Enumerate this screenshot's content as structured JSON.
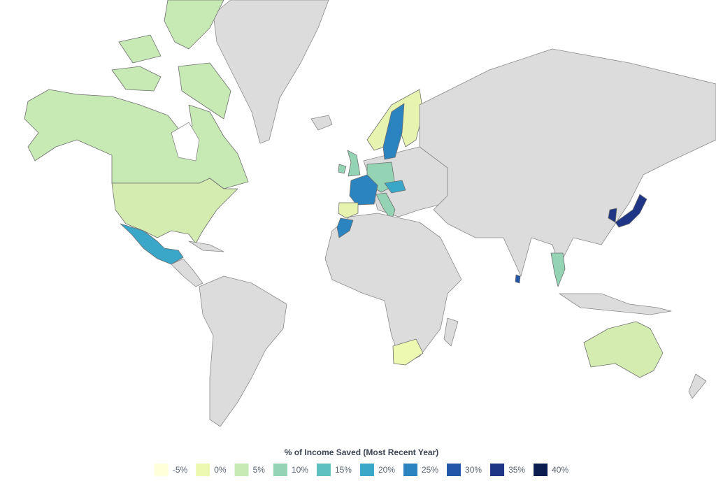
{
  "legend": {
    "title": "% of Income Saved (Most Recent Year)",
    "items": [
      {
        "value": -5,
        "label": "-5%",
        "color": "#ffffd9"
      },
      {
        "value": 0,
        "label": "0%",
        "color": "#edf8b1"
      },
      {
        "value": 5,
        "label": "5%",
        "color": "#c7e9b4"
      },
      {
        "value": 10,
        "label": "10%",
        "color": "#94d4b4"
      },
      {
        "value": 15,
        "label": "15%",
        "color": "#5ec0c0"
      },
      {
        "value": 20,
        "label": "20%",
        "color": "#3aa6c8"
      },
      {
        "value": 25,
        "label": "25%",
        "color": "#2b84c0"
      },
      {
        "value": 30,
        "label": "30%",
        "color": "#2257a8"
      },
      {
        "value": 35,
        "label": "35%",
        "color": "#1f3585"
      },
      {
        "value": 40,
        "label": "40%",
        "color": "#0b1d4f"
      }
    ]
  }
}
